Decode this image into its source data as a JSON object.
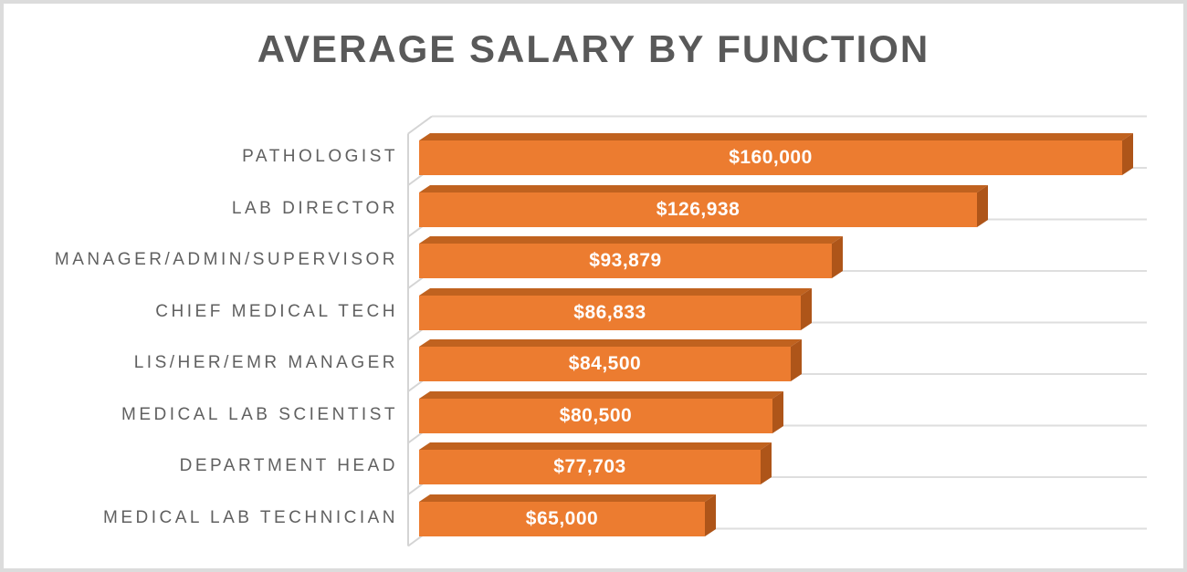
{
  "title": "AVERAGE SALARY BY FUNCTION",
  "colors": {
    "bar_face": "#EC7C30",
    "bar_top": "#C0621F",
    "bar_side": "#AE5519",
    "gridline": "#DEDEDE",
    "axis_wall": "#D4D4D4",
    "title_text": "#595959",
    "category_text": "#606060",
    "value_text": "#FFFFFF",
    "frame_border": "#DCDCDC",
    "background": "#FFFFFF"
  },
  "chart_data": {
    "type": "bar",
    "orientation": "horizontal",
    "style": "3d",
    "title": "AVERAGE SALARY BY FUNCTION",
    "xlabel": "",
    "ylabel": "",
    "grid": true,
    "legend": false,
    "xlim": [
      0,
      170000
    ],
    "categories": [
      "PATHOLOGIST",
      "LAB DIRECTOR",
      "MANAGER/ADMIN/SUPERVISOR",
      "CHIEF MEDICAL TECH",
      "LIS/HER/EMR MANAGER",
      "MEDICAL LAB SCIENTIST",
      "DEPARTMENT HEAD",
      "MEDICAL LAB TECHNICIAN"
    ],
    "values": [
      160000,
      126938,
      93879,
      86833,
      84500,
      80500,
      77703,
      65000
    ],
    "value_labels": [
      "$160,000",
      "$126,938",
      "$93,879",
      "$86,833",
      "$84,500",
      "$80,500",
      "$77,703",
      "$65,000"
    ]
  }
}
